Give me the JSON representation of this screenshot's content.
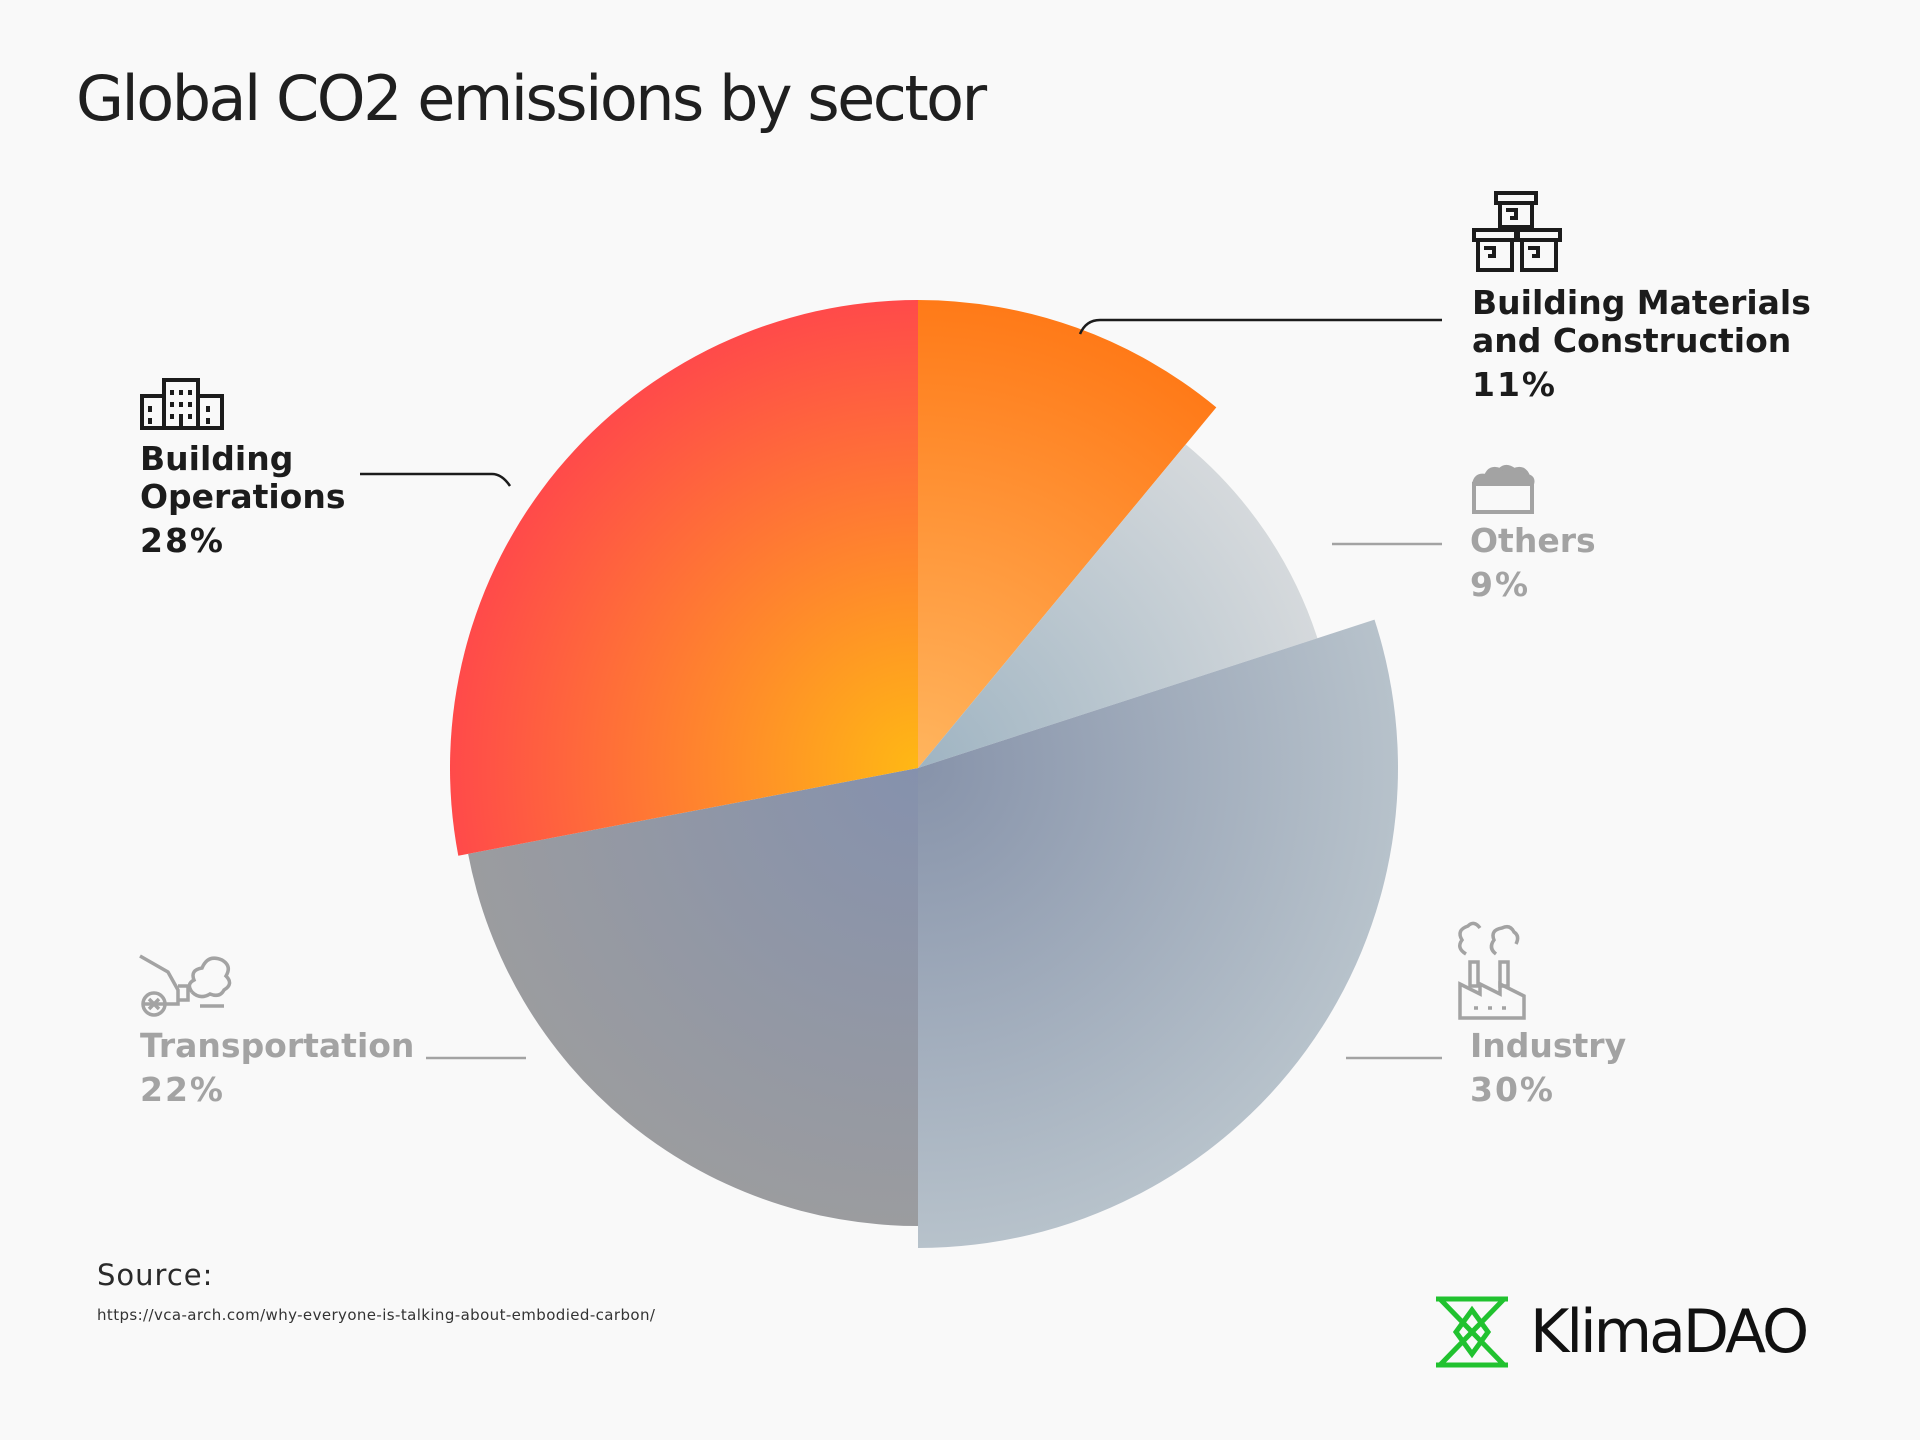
{
  "title": "Global CO2 emissions by sector",
  "chart_data": {
    "type": "pie",
    "title": "Global CO2 emissions by sector",
    "unit": "%",
    "slices": [
      {
        "name": "Building Materials and Construction",
        "value": 11,
        "label": "11%",
        "icon": "building-materials-icon",
        "color_inner": "#ffb55e",
        "color_outer": "#ff7a18",
        "emphasis": true
      },
      {
        "name": "Others",
        "value": 9,
        "label": "9%",
        "icon": "others-icon",
        "color_inner": "#9fb4c2",
        "color_outer": "#d5d9dc",
        "emphasis": false
      },
      {
        "name": "Industry",
        "value": 30,
        "label": "30%",
        "icon": "industry-icon",
        "color_inner": "#8793aa",
        "color_outer": "#b7c2cb",
        "emphasis": false
      },
      {
        "name": "Transportation",
        "value": 22,
        "label": "22%",
        "icon": "transportation-icon",
        "color_inner": "#8591ad",
        "color_outer": "#9b9c9f",
        "emphasis": false
      },
      {
        "name": "Building Operations",
        "value": 28,
        "label": "28%",
        "icon": "building-operations-icon",
        "color_inner": "#ffb814",
        "color_outer": "#ff4a4a",
        "emphasis": true
      }
    ],
    "legend": "none",
    "labels_placement": "outside with leader lines"
  },
  "labels": {
    "materials": {
      "name": "Building Materials and Construction",
      "pct": "11%"
    },
    "others": {
      "name": "Others",
      "pct": "9%"
    },
    "industry": {
      "name": "Industry",
      "pct": "30%"
    },
    "transport": {
      "name": "Transportation",
      "pct": "22%"
    },
    "operations": {
      "name": "Building Operations",
      "pct": "28%"
    }
  },
  "source": {
    "label": "Source:",
    "url": "https://vca-arch.com/why-everyone-is-talking-about-embodied-carbon/"
  },
  "brand": {
    "name": "KlimaDAO",
    "color": "#21c22f"
  },
  "colors": {
    "text_dark": "#1c1c1c",
    "text_muted": "#a3a3a3",
    "background": "#f9f9f9"
  }
}
